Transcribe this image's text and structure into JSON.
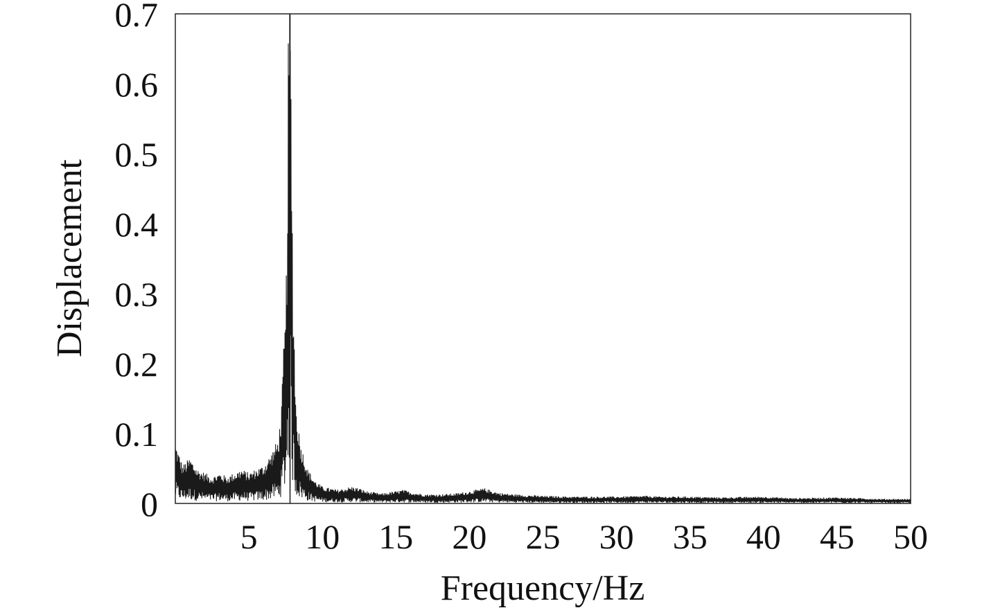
{
  "chart_data": {
    "type": "line",
    "title": "",
    "xlabel": "Frequency/Hz",
    "ylabel": "Displacement",
    "xlim": [
      0,
      50
    ],
    "ylim": [
      0,
      0.7
    ],
    "xticks": [
      5,
      10,
      15,
      20,
      25,
      30,
      35,
      40,
      45,
      50
    ],
    "xtick_labels": [
      "5",
      "10",
      "15",
      "20",
      "25",
      "30",
      "35",
      "40",
      "45",
      "50"
    ],
    "yticks": [
      0,
      0.1,
      0.2,
      0.3,
      0.4,
      0.5,
      0.6,
      0.7
    ],
    "ytick_labels": [
      "0",
      "0.1",
      "0.2",
      "0.3",
      "0.4",
      "0.5",
      "0.6",
      "0.7"
    ],
    "grid": false,
    "legend": "none",
    "line_color": "#1a1a1a",
    "series": [
      {
        "x": [
          0,
          0.5,
          1,
          1.5,
          2,
          2.5,
          3,
          3.5,
          4,
          4.5,
          5,
          5.5,
          6,
          6.5,
          7,
          7.2,
          7.4,
          7.5,
          7.6,
          7.7,
          7.8,
          7.9,
          8,
          8.2,
          8.5,
          9,
          9.5,
          10,
          11,
          12,
          12.5,
          13,
          14,
          15,
          15.5,
          16,
          17,
          18,
          19,
          20,
          21,
          22,
          23,
          25,
          27,
          30,
          32,
          33,
          35,
          37,
          40,
          42,
          45,
          48,
          50
        ],
        "y": [
          0.08,
          0.05,
          0.06,
          0.045,
          0.04,
          0.035,
          0.04,
          0.035,
          0.04,
          0.045,
          0.04,
          0.045,
          0.05,
          0.065,
          0.085,
          0.12,
          0.22,
          0.25,
          0.37,
          0.65,
          0.7,
          0.48,
          0.3,
          0.13,
          0.08,
          0.045,
          0.03,
          0.022,
          0.018,
          0.022,
          0.02,
          0.016,
          0.013,
          0.016,
          0.018,
          0.015,
          0.012,
          0.012,
          0.013,
          0.016,
          0.02,
          0.014,
          0.012,
          0.01,
          0.009,
          0.009,
          0.01,
          0.009,
          0.009,
          0.008,
          0.009,
          0.007,
          0.008,
          0.006,
          0.006
        ]
      }
    ]
  }
}
